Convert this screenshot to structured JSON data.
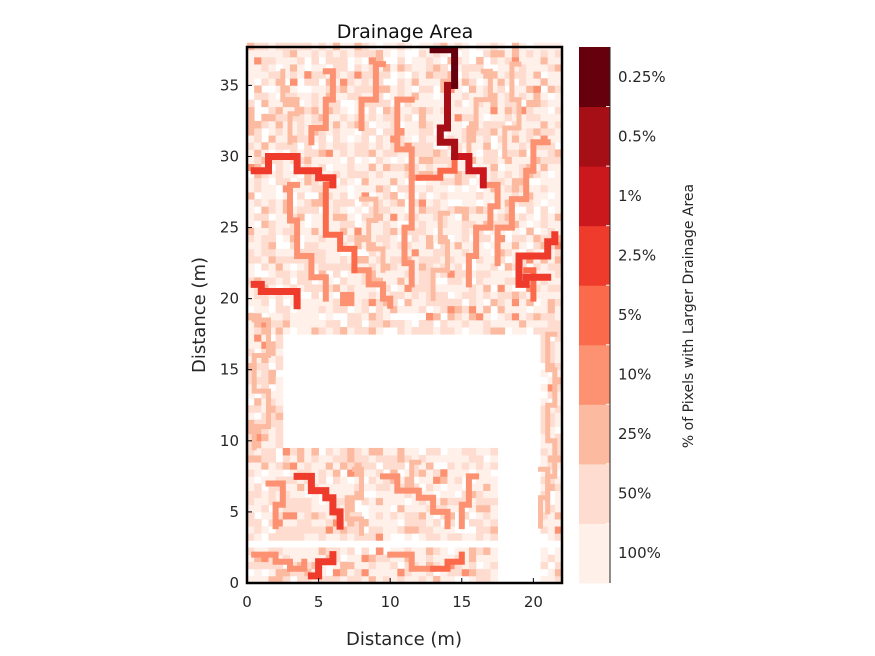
{
  "chart_data": {
    "type": "heatmap",
    "title": "Drainage Area",
    "xlabel": "Distance (m)",
    "ylabel": "Distance (m)",
    "xlim": [
      0,
      22
    ],
    "ylim": [
      0,
      37.7
    ],
    "x_ticks": [
      0,
      5,
      10,
      15,
      20
    ],
    "y_ticks": [
      0,
      5,
      10,
      15,
      20,
      25,
      30,
      35
    ],
    "grid_resolution_m": 0.5,
    "colorbar": {
      "title": "% of Pixels with Larger Drainage Area",
      "placement": "right",
      "levels": [
        "100%",
        "50%",
        "25%",
        "10%",
        "5%",
        "2.5%",
        "1%",
        "0.5%",
        "0.25%"
      ],
      "colors": [
        "#fff0ea",
        "#fedccf",
        "#fcbba1",
        "#fc9272",
        "#fb6a4a",
        "#ef3b2c",
        "#cb181d",
        "#a50f15",
        "#67000d"
      ]
    },
    "empty_regions": [
      {
        "x": [
          2.5,
          20.5
        ],
        "y": [
          9.5,
          17.5
        ]
      },
      {
        "x": [
          0,
          22
        ],
        "y": [
          2.5,
          3.0
        ]
      },
      {
        "x": [
          17.5,
          20.5
        ],
        "y": [
          0,
          9.5
        ]
      }
    ],
    "channels": [
      {
        "level_index": 8,
        "path": [
          [
            13,
            37.5
          ],
          [
            14.5,
            37
          ],
          [
            14.5,
            35
          ]
        ]
      },
      {
        "level_index": 7,
        "path": [
          [
            14.5,
            35
          ],
          [
            14,
            34
          ],
          [
            14,
            32
          ],
          [
            13.5,
            31
          ],
          [
            14.5,
            30
          ]
        ]
      },
      {
        "level_index": 6,
        "path": [
          [
            14.5,
            30
          ],
          [
            15.5,
            29
          ],
          [
            16.5,
            28
          ]
        ]
      },
      {
        "level_index": 5,
        "path": [
          [
            0.5,
            29
          ],
          [
            1.5,
            30
          ],
          [
            3,
            30
          ],
          [
            3.5,
            29
          ],
          [
            5,
            28.5
          ],
          [
            6,
            28
          ]
        ]
      },
      {
        "level_index": 5,
        "path": [
          [
            0.5,
            21
          ],
          [
            1,
            20.5
          ],
          [
            3,
            20.5
          ],
          [
            3.5,
            19.5
          ]
        ]
      },
      {
        "level_index": 5,
        "path": [
          [
            21,
            21.5
          ],
          [
            19.5,
            21
          ],
          [
            19,
            23
          ],
          [
            20.5,
            23
          ],
          [
            21,
            24
          ],
          [
            21.5,
            24.5
          ]
        ]
      },
      {
        "level_index": 5,
        "path": [
          [
            3.5,
            7.5
          ],
          [
            4.5,
            6.5
          ],
          [
            5.5,
            6
          ],
          [
            6,
            5
          ],
          [
            6.5,
            4
          ]
        ]
      },
      {
        "level_index": 5,
        "path": [
          [
            4.5,
            0.5
          ],
          [
            5,
            1.5
          ],
          [
            6,
            2
          ]
        ]
      },
      {
        "level_index": 4,
        "path": [
          [
            6,
            28
          ],
          [
            5.5,
            26
          ],
          [
            5.5,
            24.5
          ],
          [
            6.5,
            23.5
          ],
          [
            7.5,
            22
          ]
        ]
      },
      {
        "level_index": 4,
        "path": [
          [
            12,
            28.5
          ],
          [
            13.5,
            29
          ],
          [
            14.5,
            30
          ]
        ]
      },
      {
        "level_index": 4,
        "path": [
          [
            19.5,
            22
          ],
          [
            20,
            20
          ]
        ]
      },
      {
        "level_index": 4,
        "path": [
          [
            13,
            1
          ],
          [
            14,
            1.5
          ],
          [
            15,
            2
          ]
        ]
      },
      {
        "level_index": 3,
        "path": [
          [
            5.5,
            36
          ],
          [
            6,
            34
          ],
          [
            5.5,
            32
          ],
          [
            4.5,
            31
          ]
        ]
      },
      {
        "level_index": 3,
        "path": [
          [
            9.5,
            36.5
          ],
          [
            9,
            34
          ],
          [
            8,
            32
          ]
        ]
      },
      {
        "level_index": 3,
        "path": [
          [
            11.5,
            34
          ],
          [
            10.5,
            30.5
          ],
          [
            11.5,
            28.5
          ],
          [
            12,
            28.5
          ]
        ]
      },
      {
        "level_index": 3,
        "path": [
          [
            16.5,
            28
          ],
          [
            17.5,
            26.5
          ],
          [
            17,
            25
          ],
          [
            16,
            23
          ],
          [
            15.5,
            21
          ]
        ]
      },
      {
        "level_index": 3,
        "path": [
          [
            11.5,
            28.5
          ],
          [
            11.5,
            25
          ],
          [
            11,
            22.5
          ],
          [
            11.5,
            21
          ]
        ]
      },
      {
        "level_index": 3,
        "path": [
          [
            21,
            31
          ],
          [
            20,
            29
          ],
          [
            19.5,
            27
          ],
          [
            18.5,
            25
          ],
          [
            17.5,
            22.5
          ]
        ]
      },
      {
        "level_index": 3,
        "path": [
          [
            7.5,
            22
          ],
          [
            8.5,
            21
          ],
          [
            9.5,
            20
          ],
          [
            10,
            19.5
          ]
        ]
      },
      {
        "level_index": 3,
        "path": [
          [
            3.5,
            28
          ],
          [
            3,
            25.5
          ],
          [
            3.5,
            23
          ],
          [
            4.5,
            21.5
          ],
          [
            5.5,
            20
          ]
        ]
      },
      {
        "level_index": 3,
        "path": [
          [
            9.5,
            7.5
          ],
          [
            10.5,
            6.5
          ],
          [
            12,
            6
          ],
          [
            13,
            5
          ],
          [
            14,
            4
          ]
        ]
      },
      {
        "level_index": 3,
        "path": [
          [
            16,
            7.5
          ],
          [
            15.5,
            5.5
          ],
          [
            15,
            4
          ]
        ]
      },
      {
        "level_index": 3,
        "path": [
          [
            0.5,
            2
          ],
          [
            2,
            1.5
          ],
          [
            3,
            1
          ],
          [
            4,
            1.5
          ]
        ]
      },
      {
        "level_index": 3,
        "path": [
          [
            10,
            2
          ],
          [
            11.5,
            1
          ],
          [
            13,
            1
          ]
        ]
      },
      {
        "level_index": 3,
        "path": [
          [
            1.5,
            7
          ],
          [
            2.5,
            5.5
          ],
          [
            2,
            4
          ]
        ]
      },
      {
        "level_index": 2,
        "path": [
          [
            2.5,
            36
          ],
          [
            2.5,
            34
          ],
          [
            3.5,
            33
          ],
          [
            3,
            31
          ]
        ]
      },
      {
        "level_index": 2,
        "path": [
          [
            16.5,
            36
          ],
          [
            17,
            34
          ],
          [
            16,
            32
          ],
          [
            15.5,
            30
          ]
        ]
      },
      {
        "level_index": 2,
        "path": [
          [
            19,
            36.5
          ],
          [
            18.5,
            34
          ],
          [
            19,
            32
          ],
          [
            18,
            30
          ]
        ]
      },
      {
        "level_index": 2,
        "path": [
          [
            8,
            27
          ],
          [
            9,
            25.5
          ],
          [
            8.5,
            23.5
          ],
          [
            9.5,
            22
          ]
        ]
      },
      {
        "level_index": 2,
        "path": [
          [
            14,
            26
          ],
          [
            13.5,
            24
          ],
          [
            14,
            22
          ],
          [
            13,
            20
          ]
        ]
      },
      {
        "level_index": 2,
        "path": [
          [
            0.5,
            18.5
          ],
          [
            1.5,
            16
          ],
          [
            0.5,
            13.5
          ],
          [
            1.5,
            11
          ],
          [
            0.5,
            9.5
          ]
        ]
      },
      {
        "level_index": 2,
        "path": [
          [
            21.5,
            17.5
          ],
          [
            21,
            15
          ],
          [
            21.5,
            12.5
          ],
          [
            21,
            10
          ],
          [
            21.5,
            7.5
          ],
          [
            21,
            5
          ]
        ]
      },
      {
        "level_index": 2,
        "path": [
          [
            7.5,
            8
          ],
          [
            8,
            6
          ],
          [
            7,
            4.5
          ],
          [
            8,
            3.5
          ]
        ]
      },
      {
        "level_index": 2,
        "path": [
          [
            12,
            8.5
          ],
          [
            11.5,
            6.5
          ]
        ]
      },
      {
        "level_index": 2,
        "path": [
          [
            20.5,
            8
          ],
          [
            21,
            6
          ],
          [
            20.5,
            4
          ]
        ]
      }
    ]
  }
}
